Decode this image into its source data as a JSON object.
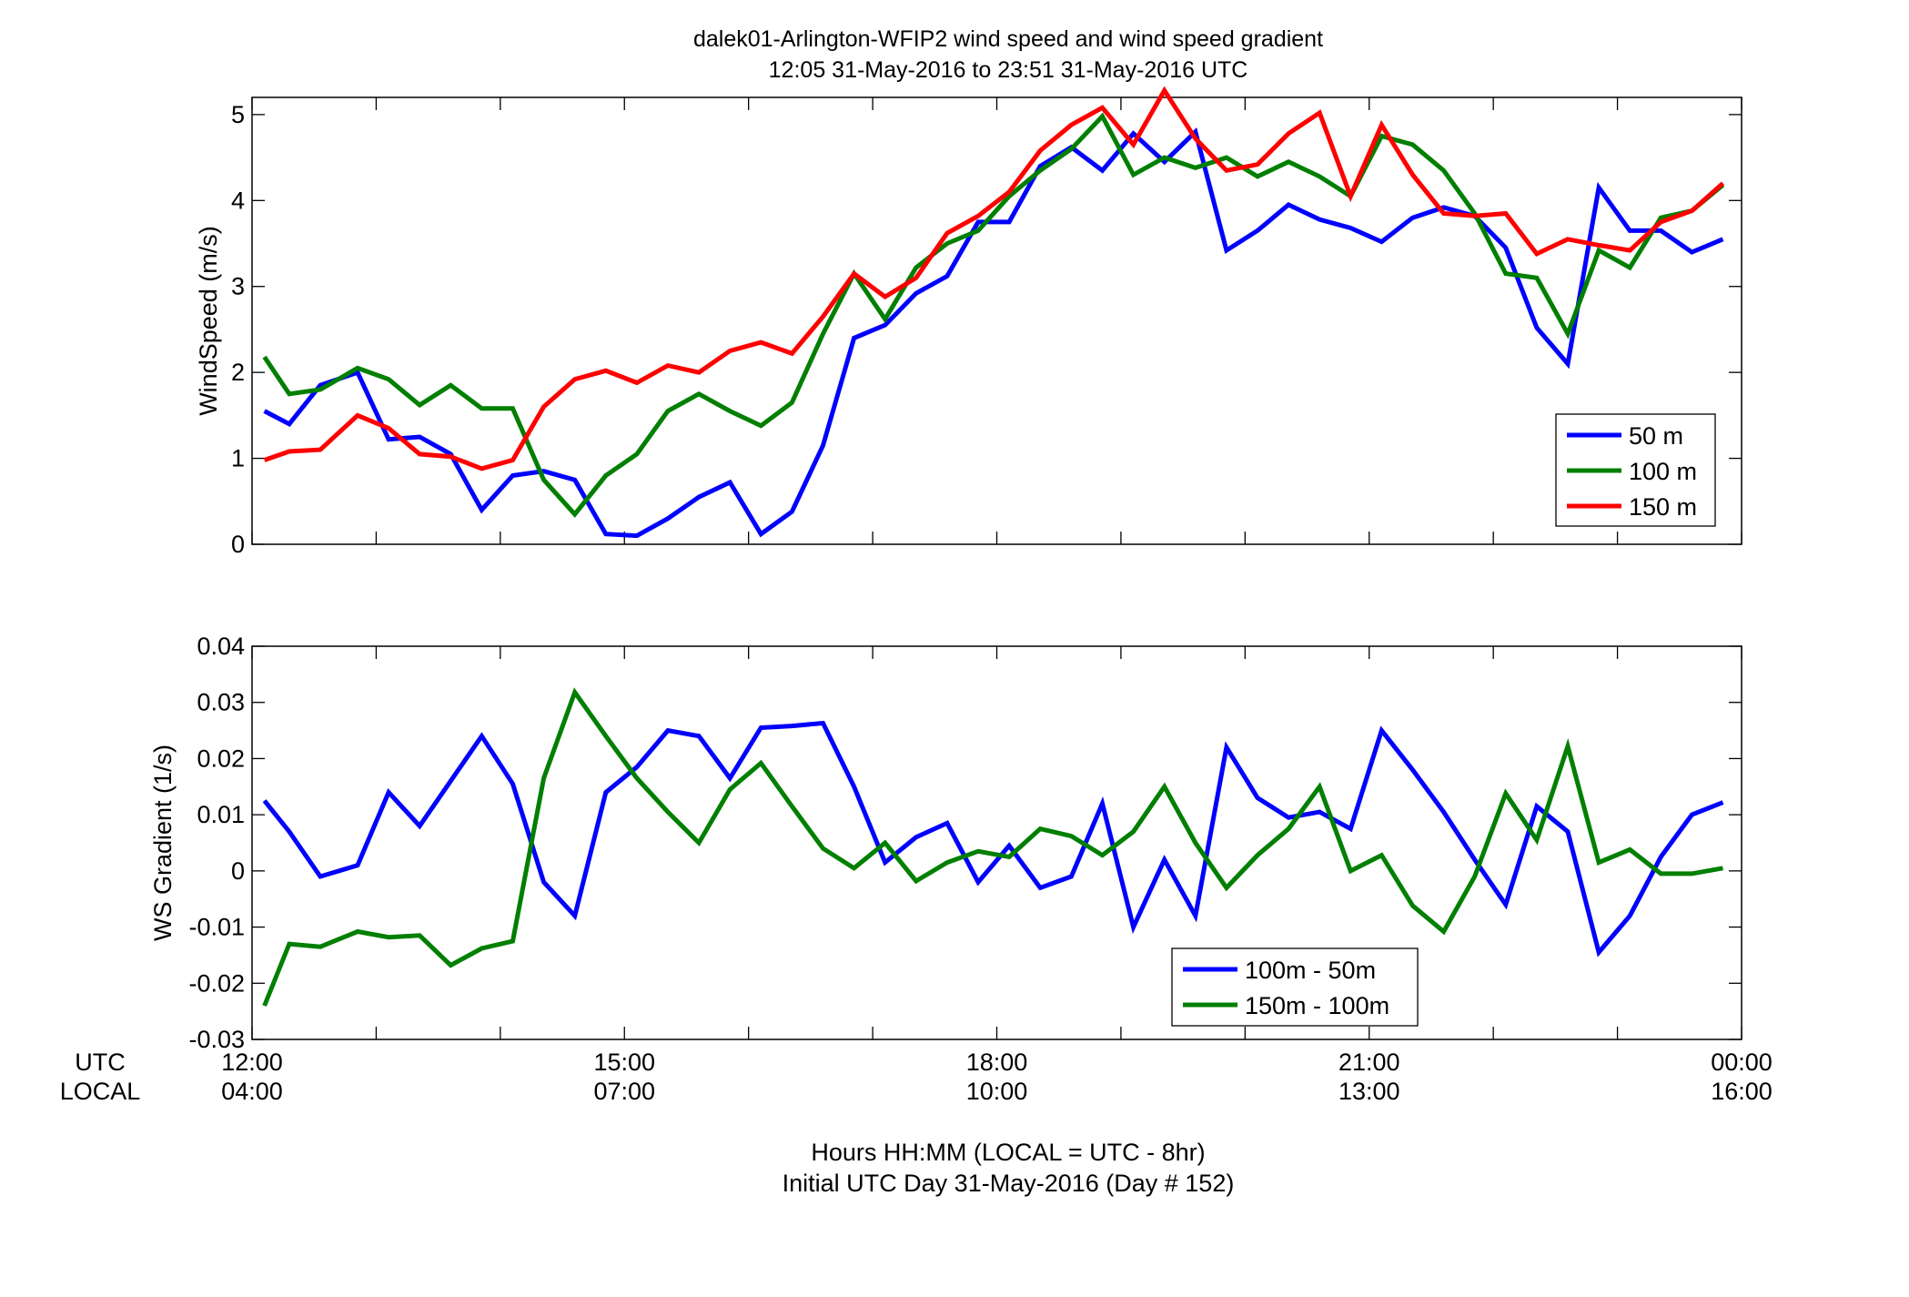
{
  "title": {
    "line1": "dalek01-Arlington-WFIP2  wind speed and wind speed gradient",
    "line2": "12:05 31-May-2016 to 23:51 31-May-2016  UTC"
  },
  "xaxis": {
    "utc_label": "UTC",
    "local_label": "LOCAL",
    "utc_ticks": [
      "12:00",
      "15:00",
      "18:00",
      "21:00",
      "00:00"
    ],
    "local_ticks": [
      "04:00",
      "07:00",
      "10:00",
      "13:00",
      "16:00"
    ],
    "tick_hours": [
      12,
      15,
      18,
      21,
      24
    ],
    "minor_interval_hr": 1,
    "range_hr": [
      12,
      24
    ],
    "caption_line1": "Hours HH:MM  (LOCAL = UTC - 8hr)",
    "caption_line2": "Initial UTC Day 31-May-2016 (Day # 152)"
  },
  "chart_data": [
    {
      "type": "line",
      "ylabel": "WindSpeed (m/s)",
      "ylim": [
        0,
        5.2
      ],
      "yticks": [
        0,
        1,
        2,
        3,
        4,
        5
      ],
      "ytick_labels": [
        "0",
        "1",
        "2",
        "3",
        "4",
        "5"
      ],
      "legend_position": "bottom-right",
      "x": [
        12.1,
        12.3,
        12.55,
        12.85,
        13.1,
        13.35,
        13.6,
        13.85,
        14.1,
        14.35,
        14.6,
        14.85,
        15.1,
        15.35,
        15.6,
        15.85,
        16.1,
        16.35,
        16.6,
        16.85,
        17.1,
        17.35,
        17.6,
        17.85,
        18.1,
        18.35,
        18.6,
        18.85,
        19.1,
        19.35,
        19.6,
        19.85,
        20.1,
        20.35,
        20.6,
        20.85,
        21.1,
        21.35,
        21.6,
        21.85,
        22.1,
        22.35,
        22.6,
        22.85,
        23.1,
        23.35,
        23.6,
        23.85
      ],
      "series": [
        {
          "name": "50 m",
          "color": "#0000ff",
          "values": [
            1.55,
            1.4,
            1.85,
            2.0,
            1.22,
            1.25,
            1.05,
            0.4,
            0.8,
            0.85,
            0.75,
            0.12,
            0.1,
            0.3,
            0.55,
            0.72,
            0.12,
            0.38,
            1.15,
            2.4,
            2.55,
            2.92,
            3.12,
            3.75,
            3.75,
            4.4,
            4.62,
            4.35,
            4.78,
            4.45,
            4.8,
            3.42,
            3.65,
            3.95,
            3.78,
            3.68,
            3.52,
            3.8,
            3.92,
            3.82,
            3.45,
            2.52,
            2.1,
            4.15,
            3.65,
            3.65,
            3.4,
            3.55
          ]
        },
        {
          "name": "100 m",
          "color": "#007f00",
          "values": [
            2.18,
            1.75,
            1.8,
            2.05,
            1.92,
            1.62,
            1.85,
            1.58,
            1.58,
            0.75,
            0.35,
            0.8,
            1.05,
            1.55,
            1.75,
            1.55,
            1.38,
            1.65,
            2.45,
            3.15,
            2.62,
            3.22,
            3.5,
            3.65,
            4.05,
            4.35,
            4.6,
            4.98,
            4.3,
            4.5,
            4.38,
            4.5,
            4.28,
            4.45,
            4.28,
            4.05,
            4.75,
            4.65,
            4.35,
            3.85,
            3.15,
            3.1,
            2.45,
            3.42,
            3.22,
            3.8,
            3.88,
            4.18
          ]
        },
        {
          "name": "150 m",
          "color": "#ff0000",
          "values": [
            0.98,
            1.08,
            1.1,
            1.5,
            1.35,
            1.05,
            1.02,
            0.88,
            0.98,
            1.6,
            1.92,
            2.02,
            1.88,
            2.08,
            2.0,
            2.25,
            2.35,
            2.22,
            2.65,
            3.15,
            2.88,
            3.1,
            3.62,
            3.82,
            4.1,
            4.58,
            4.88,
            5.08,
            4.65,
            5.28,
            4.72,
            4.35,
            4.42,
            4.78,
            5.02,
            4.05,
            4.88,
            4.3,
            3.85,
            3.82,
            3.85,
            3.38,
            3.55,
            3.48,
            3.42,
            3.75,
            3.88,
            4.2
          ]
        }
      ]
    },
    {
      "type": "line",
      "ylabel": "WS Gradient (1/s)",
      "ylim": [
        -0.03,
        0.04
      ],
      "yticks": [
        -0.03,
        -0.02,
        -0.01,
        0,
        0.01,
        0.02,
        0.03,
        0.04
      ],
      "ytick_labels": [
        "-0.03",
        "-0.02",
        "-0.01",
        "0",
        "0.01",
        "0.02",
        "0.03",
        "0.04"
      ],
      "legend_position": "bottom-center",
      "x": [
        12.1,
        12.3,
        12.55,
        12.85,
        13.1,
        13.35,
        13.6,
        13.85,
        14.1,
        14.35,
        14.6,
        14.85,
        15.1,
        15.35,
        15.6,
        15.85,
        16.1,
        16.35,
        16.6,
        16.85,
        17.1,
        17.35,
        17.6,
        17.85,
        18.1,
        18.35,
        18.6,
        18.85,
        19.1,
        19.35,
        19.6,
        19.85,
        20.1,
        20.35,
        20.6,
        20.85,
        21.1,
        21.35,
        21.6,
        21.85,
        22.1,
        22.35,
        22.6,
        22.85,
        23.1,
        23.35,
        23.6,
        23.85
      ],
      "series": [
        {
          "name": "100m - 50m",
          "color": "#0000ff",
          "values": [
            0.0125,
            0.007,
            -0.001,
            0.001,
            0.014,
            0.008,
            0.016,
            0.024,
            0.0155,
            -0.002,
            -0.008,
            0.014,
            0.0185,
            0.025,
            0.024,
            0.0165,
            0.0255,
            0.0258,
            0.0263,
            0.015,
            0.0015,
            0.006,
            0.0085,
            -0.002,
            0.0045,
            -0.003,
            -0.001,
            0.012,
            -0.01,
            0.002,
            -0.008,
            0.022,
            0.013,
            0.0095,
            0.0105,
            0.0075,
            0.025,
            0.018,
            0.0105,
            0.002,
            -0.006,
            0.0115,
            0.007,
            -0.0145,
            -0.008,
            0.0025,
            0.01,
            0.0122
          ]
        },
        {
          "name": "150m - 100m",
          "color": "#007f00",
          "values": [
            -0.024,
            -0.013,
            -0.0135,
            -0.0108,
            -0.0118,
            -0.0115,
            -0.0168,
            -0.0138,
            -0.0125,
            0.0165,
            0.0318,
            0.024,
            0.0165,
            0.0105,
            0.005,
            0.0145,
            0.0192,
            0.0115,
            0.004,
            0.0005,
            0.005,
            -0.0018,
            0.0015,
            0.0035,
            0.0025,
            0.0075,
            0.0062,
            0.0028,
            0.007,
            0.015,
            0.005,
            -0.003,
            0.0028,
            0.0075,
            0.015,
            0.0,
            0.0028,
            -0.0062,
            -0.0108,
            -0.001,
            0.0138,
            0.0055,
            0.0222,
            0.0015,
            0.0038,
            -0.0005,
            -0.0005,
            0.0005
          ]
        }
      ]
    }
  ]
}
